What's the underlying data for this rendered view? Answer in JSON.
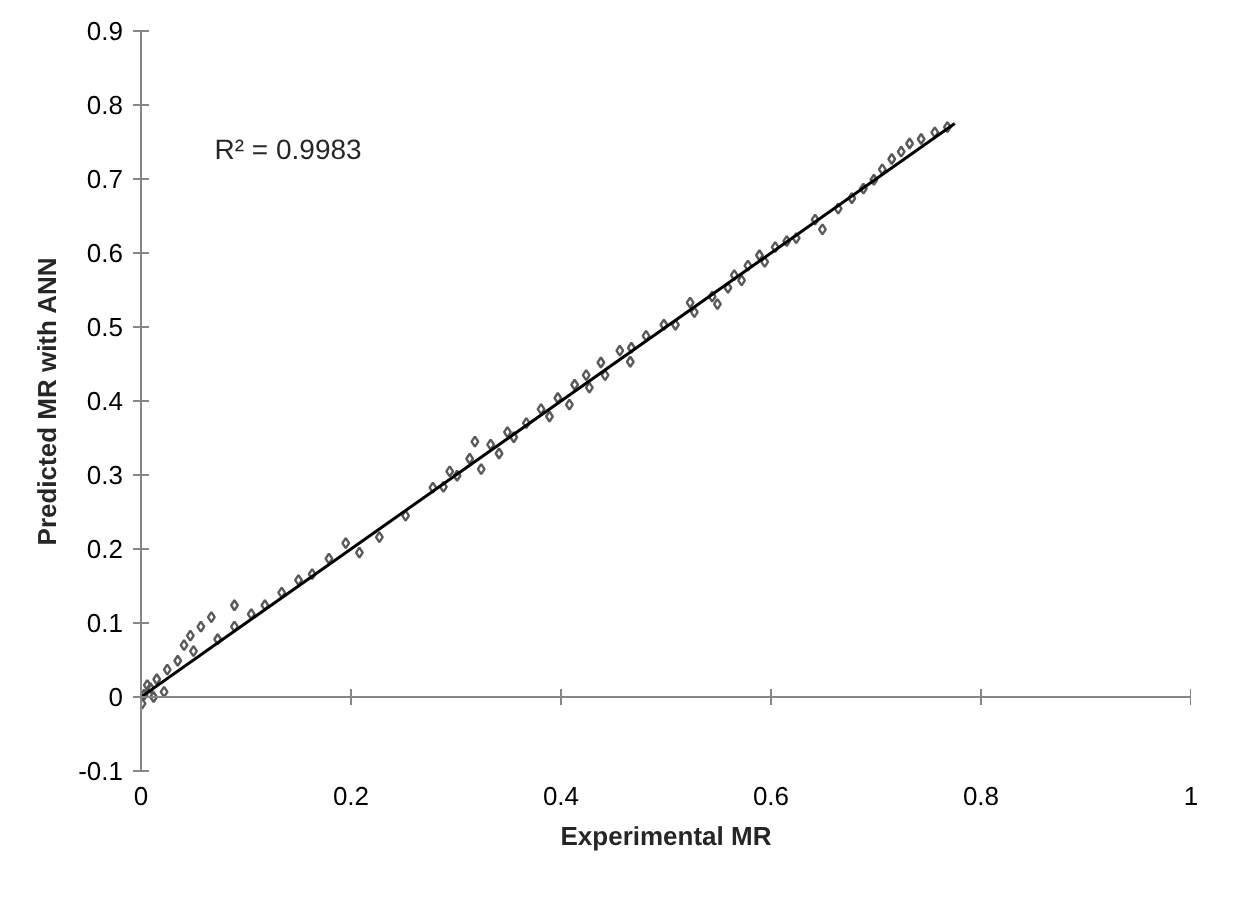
{
  "chart_data": {
    "type": "scatter",
    "xlabel": "Experimental MR",
    "ylabel": "Predicted MR with ANN",
    "annotations": [
      "R² = 0.9983"
    ],
    "xlim": [
      0,
      1
    ],
    "xticks": [
      0,
      0.2,
      0.4,
      0.6,
      0.8,
      1
    ],
    "ylim": [
      -0.1,
      0.9
    ],
    "yticks": [
      -0.1,
      0,
      0.1,
      0.2,
      0.3,
      0.4,
      0.5,
      0.6,
      0.7,
      0.8,
      0.9
    ],
    "marker": "diamond",
    "series": [
      {
        "color": "#595959",
        "x": [
          0.768,
          0.756,
          0.743,
          0.732,
          0.724,
          0.715,
          0.706,
          0.698,
          0.688,
          0.677,
          0.664,
          0.649,
          0.642,
          0.624,
          0.615,
          0.604,
          0.594,
          0.589,
          0.578,
          0.572,
          0.565,
          0.559,
          0.549,
          0.544,
          0.527,
          0.523,
          0.509,
          0.498,
          0.481,
          0.467,
          0.466,
          0.456,
          0.438,
          0.442,
          0.424,
          0.427,
          0.413,
          0.408,
          0.397,
          0.389,
          0.381,
          0.367,
          0.355,
          0.349,
          0.341,
          0.333,
          0.324,
          0.318,
          0.313,
          0.301,
          0.294,
          0.288,
          0.278,
          0.252,
          0.227,
          0.208,
          0.195,
          0.179,
          0.163,
          0.15,
          0.134,
          0.118,
          0.105,
          0.089,
          0.089,
          0.067,
          0.073,
          0.057,
          0.047,
          0.05,
          0.041,
          0.035,
          0.025,
          0.015,
          0.009,
          0.003,
          0.001,
          0.012,
          0.006,
          0.022
        ],
        "values": [
          0.77,
          0.763,
          0.754,
          0.748,
          0.737,
          0.727,
          0.713,
          0.699,
          0.687,
          0.674,
          0.66,
          0.632,
          0.645,
          0.62,
          0.616,
          0.608,
          0.588,
          0.597,
          0.583,
          0.563,
          0.57,
          0.553,
          0.531,
          0.541,
          0.52,
          0.533,
          0.503,
          0.503,
          0.488,
          0.472,
          0.453,
          0.468,
          0.452,
          0.435,
          0.435,
          0.418,
          0.422,
          0.395,
          0.404,
          0.379,
          0.389,
          0.37,
          0.351,
          0.358,
          0.329,
          0.341,
          0.308,
          0.345,
          0.322,
          0.299,
          0.305,
          0.284,
          0.283,
          0.245,
          0.216,
          0.195,
          0.208,
          0.187,
          0.166,
          0.158,
          0.141,
          0.124,
          0.112,
          0.124,
          0.095,
          0.108,
          0.078,
          0.095,
          0.083,
          0.062,
          0.07,
          0.049,
          0.037,
          0.024,
          0.012,
          0.003,
          -0.009,
          0.0,
          0.016,
          0.007
        ]
      },
      {
        "type": "line",
        "marker": "none",
        "color": "#000000",
        "x": [
          0,
          0.775
        ],
        "values": [
          0,
          0.775
        ]
      }
    ]
  }
}
